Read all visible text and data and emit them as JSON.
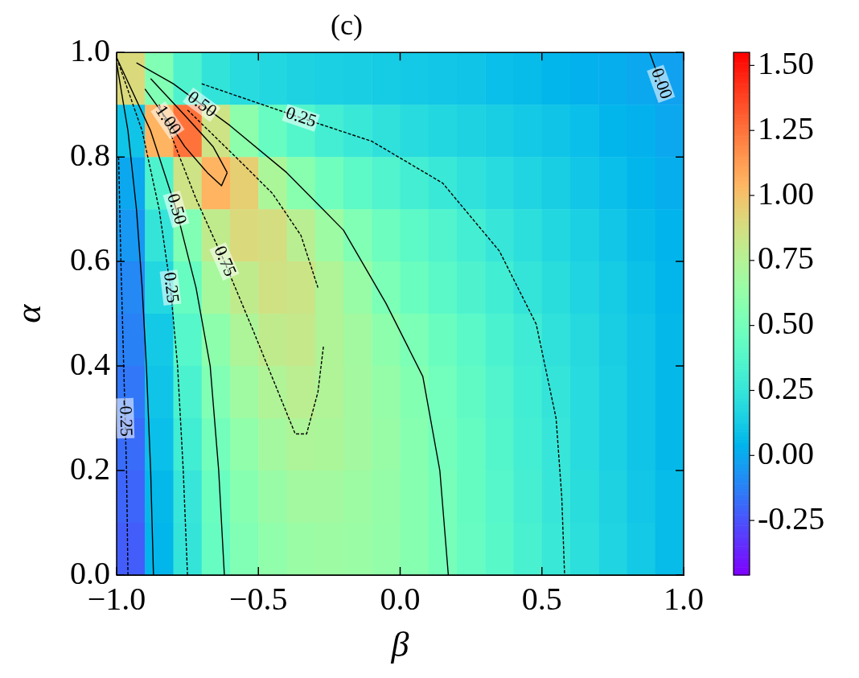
{
  "chart_data": {
    "type": "heatmap",
    "title": "(c)",
    "xlabel": "β",
    "ylabel": "α",
    "x": [
      -0.95,
      -0.85,
      -0.75,
      -0.65,
      -0.55,
      -0.45,
      -0.35,
      -0.25,
      -0.15,
      -0.05,
      0.05,
      0.15,
      0.25,
      0.35,
      0.45,
      0.55,
      0.65,
      0.75,
      0.85,
      0.95
    ],
    "y": [
      0.95,
      0.85,
      0.75,
      0.65,
      0.55,
      0.45,
      0.35,
      0.25,
      0.15,
      0.05
    ],
    "cells": [
      [
        0.9,
        0.55,
        0.35,
        0.24,
        0.2,
        0.18,
        0.16,
        0.15,
        0.14,
        0.13,
        0.12,
        0.11,
        0.1,
        0.08,
        0.07,
        0.05,
        0.03,
        0.02,
        0.0,
        -0.02
      ],
      [
        0.1,
        1.05,
        1.25,
        0.85,
        0.6,
        0.45,
        0.37,
        0.31,
        0.27,
        0.23,
        0.2,
        0.18,
        0.16,
        0.14,
        0.12,
        0.1,
        0.08,
        0.05,
        0.03,
        0.0
      ],
      [
        0.0,
        0.35,
        0.85,
        1.05,
        0.95,
        0.72,
        0.58,
        0.48,
        0.41,
        0.36,
        0.31,
        0.27,
        0.23,
        0.2,
        0.17,
        0.14,
        0.11,
        0.08,
        0.05,
        0.02
      ],
      [
        -0.05,
        0.25,
        0.55,
        0.8,
        0.9,
        0.88,
        0.77,
        0.66,
        0.55,
        0.47,
        0.41,
        0.36,
        0.31,
        0.26,
        0.22,
        0.18,
        0.15,
        0.11,
        0.07,
        0.04
      ],
      [
        -0.1,
        0.18,
        0.45,
        0.7,
        0.8,
        0.86,
        0.84,
        0.74,
        0.64,
        0.53,
        0.46,
        0.4,
        0.35,
        0.3,
        0.25,
        0.21,
        0.17,
        0.13,
        0.09,
        0.05
      ],
      [
        -0.12,
        0.12,
        0.38,
        0.6,
        0.73,
        0.8,
        0.82,
        0.74,
        0.68,
        0.6,
        0.53,
        0.46,
        0.4,
        0.34,
        0.29,
        0.23,
        0.19,
        0.14,
        0.1,
        0.06
      ],
      [
        -0.15,
        0.1,
        0.34,
        0.55,
        0.67,
        0.74,
        0.78,
        0.74,
        0.69,
        0.63,
        0.56,
        0.49,
        0.42,
        0.36,
        0.3,
        0.25,
        0.2,
        0.15,
        0.1,
        0.06
      ],
      [
        -0.18,
        0.08,
        0.3,
        0.5,
        0.61,
        0.69,
        0.73,
        0.72,
        0.69,
        0.64,
        0.57,
        0.5,
        0.44,
        0.37,
        0.31,
        0.26,
        0.2,
        0.15,
        0.1,
        0.06
      ],
      [
        -0.2,
        0.06,
        0.26,
        0.46,
        0.57,
        0.64,
        0.68,
        0.68,
        0.66,
        0.63,
        0.57,
        0.51,
        0.44,
        0.38,
        0.32,
        0.26,
        0.21,
        0.16,
        0.11,
        0.07
      ],
      [
        -0.22,
        0.05,
        0.25,
        0.45,
        0.55,
        0.61,
        0.65,
        0.66,
        0.65,
        0.62,
        0.57,
        0.51,
        0.45,
        0.39,
        0.33,
        0.27,
        0.22,
        0.17,
        0.12,
        0.07
      ]
    ],
    "clim": [
      -0.46,
      1.55
    ],
    "cticks": [
      {
        "value": -0.25,
        "label": "-0.25"
      },
      {
        "value": 0,
        "label": "0.00"
      },
      {
        "value": 0.25,
        "label": "0.25"
      },
      {
        "value": 0.5,
        "label": "0.50"
      },
      {
        "value": 0.75,
        "label": "0.75"
      },
      {
        "value": 1,
        "label": "1.00"
      },
      {
        "value": 1.25,
        "label": "1.25"
      },
      {
        "value": 1.5,
        "label": "1.50"
      }
    ],
    "xlim": [
      -1,
      1
    ],
    "xticks": [
      {
        "value": -1,
        "label": "−1.0"
      },
      {
        "value": -0.5,
        "label": "−0.5"
      },
      {
        "value": 0,
        "label": "0.0"
      },
      {
        "value": 0.5,
        "label": "0.5"
      },
      {
        "value": 1,
        "label": "1.0"
      }
    ],
    "ylim": [
      0,
      1
    ],
    "yticks": [
      {
        "value": 0,
        "label": "0.0"
      },
      {
        "value": 0.2,
        "label": "0.2"
      },
      {
        "value": 0.4,
        "label": "0.4"
      },
      {
        "value": 0.6,
        "label": "0.6"
      },
      {
        "value": 0.8,
        "label": "0.8"
      },
      {
        "value": 1,
        "label": "1.0"
      }
    ],
    "series": [
      {
        "type": "line",
        "color": "#000000",
        "line_style": "dashed",
        "x": [
          -0.96,
          -0.965,
          -0.97,
          -0.975,
          -0.985,
          -0.993
        ],
        "values": [
          0,
          0.2,
          0.3,
          0.4,
          0.6,
          0.8
        ]
      },
      {
        "type": "line",
        "color": "#000000",
        "line_style": "solid",
        "x": [
          -0.87,
          -0.88,
          -0.895,
          -0.91,
          -0.93,
          -0.96,
          -1
        ],
        "values": [
          0,
          0.2,
          0.4,
          0.55,
          0.7,
          0.85,
          0.98
        ]
      },
      {
        "type": "line",
        "color": "#000000",
        "line_style": "dashed",
        "x": [
          -0.75,
          -0.765,
          -0.785,
          -0.81,
          -0.85,
          -0.91,
          -1
        ],
        "values": [
          0,
          0.2,
          0.4,
          0.55,
          0.7,
          0.85,
          0.99
        ]
      },
      {
        "type": "line",
        "color": "#000000",
        "line_style": "solid",
        "x": [
          -0.62,
          -0.64,
          -0.67,
          -0.72,
          -0.79,
          -0.88,
          -1
        ],
        "values": [
          0,
          0.2,
          0.4,
          0.55,
          0.7,
          0.85,
          0.99
        ]
      },
      {
        "type": "line",
        "color": "#000000",
        "line_style": "dashed",
        "x": [
          -0.85,
          -0.72,
          -0.62,
          -0.52,
          -0.43,
          -0.37,
          -0.33,
          -0.29,
          -0.27
        ],
        "values": [
          0.9,
          0.72,
          0.6,
          0.47,
          0.35,
          0.27,
          0.27,
          0.35,
          0.44
        ]
      },
      {
        "type": "line",
        "color": "#000000",
        "line_style": "dashed",
        "x": [
          -0.75,
          -0.58,
          -0.45,
          -0.35,
          -0.29
        ],
        "values": [
          0.89,
          0.8,
          0.73,
          0.65,
          0.55
        ]
      },
      {
        "type": "line",
        "color": "#000000",
        "line_style": "solid",
        "x": [
          -0.9,
          -0.82,
          -0.76,
          -0.68,
          -0.63,
          -0.61
        ],
        "values": [
          0.93,
          0.87,
          0.82,
          0.77,
          0.745,
          0.77
        ]
      },
      {
        "type": "line",
        "color": "#000000",
        "line_style": "solid",
        "x": [
          -0.88,
          -0.76,
          -0.66,
          -0.61
        ],
        "values": [
          0.95,
          0.88,
          0.82,
          0.77
        ]
      },
      {
        "type": "line",
        "color": "#000000",
        "line_style": "solid",
        "x": [
          -0.93,
          -0.8,
          -0.7,
          -0.6,
          -0.4,
          -0.2,
          -0.05,
          0.08,
          0.14,
          0.17
        ],
        "values": [
          0.98,
          0.94,
          0.9,
          0.86,
          0.77,
          0.66,
          0.52,
          0.38,
          0.2,
          0
        ]
      },
      {
        "type": "line",
        "color": "#000000",
        "line_style": "dashed",
        "x": [
          -0.7,
          -0.35,
          -0.1,
          0.15,
          0.35,
          0.48,
          0.55,
          0.57,
          0.58
        ],
        "values": [
          0.94,
          0.875,
          0.83,
          0.75,
          0.62,
          0.48,
          0.3,
          0.15,
          0
        ]
      },
      {
        "type": "line",
        "color": "#000000",
        "line_style": "solid",
        "x": [
          0.88,
          0.92
        ],
        "values": [
          1,
          0.94
        ]
      }
    ],
    "annotations": [
      {
        "text": "-0.25",
        "x": -0.97,
        "y": 0.3
      },
      {
        "text": "0.25",
        "x": -0.81,
        "y": 0.55
      },
      {
        "text": "0.50",
        "x": -0.79,
        "y": 0.7
      },
      {
        "text": "0.75",
        "x": -0.62,
        "y": 0.6
      },
      {
        "text": "1.00",
        "x": -0.82,
        "y": 0.87
      },
      {
        "text": "0.50",
        "x": -0.7,
        "y": 0.9
      },
      {
        "text": "0.25",
        "x": -0.35,
        "y": 0.875
      },
      {
        "text": "0.00",
        "x": 0.92,
        "y": 0.94
      }
    ]
  }
}
